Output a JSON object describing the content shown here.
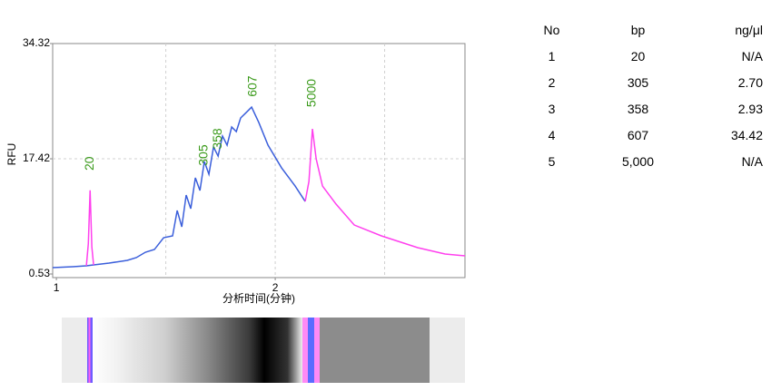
{
  "chart_data": {
    "type": "line",
    "ylabel": "RFU",
    "xlabel": "分析时间(分钟)",
    "xlim": [
      0.983,
      2.867
    ],
    "ylim": [
      0,
      34.32
    ],
    "xticks": [
      1,
      2
    ],
    "yticks": [
      0.53,
      17.42,
      34.32
    ],
    "x_grid": [
      1.5,
      2,
      2.5
    ],
    "series": [
      {
        "color": "#3b5fdb",
        "x": [
          0.983,
          1.075,
          1.137,
          1.17,
          1.241,
          1.324,
          1.365,
          1.407,
          1.448,
          1.49,
          1.531,
          1.552,
          1.573,
          1.593,
          1.614,
          1.635,
          1.656,
          1.676,
          1.697,
          1.718,
          1.739,
          1.759,
          1.78,
          1.801,
          1.822,
          1.842,
          1.863,
          1.892,
          1.925,
          1.967,
          2.029,
          2.091,
          2.137
        ],
        "values": [
          1.46,
          1.6,
          1.73,
          1.86,
          2.13,
          2.53,
          2.93,
          3.72,
          4.12,
          5.85,
          6.12,
          9.84,
          7.45,
          12.1,
          10.11,
          14.63,
          12.77,
          17.02,
          15.16,
          19.15,
          17.82,
          20.75,
          19.42,
          22.08,
          21.41,
          23.41,
          24.07,
          25.0,
          22.74,
          19.42,
          16.09,
          13.43,
          11.17
        ]
      },
      {
        "color": "#ff40ee",
        "x": [
          1.137,
          1.146,
          1.154,
          1.162,
          1.17
        ],
        "values": [
          1.73,
          5.0,
          12.8,
          4.5,
          1.86
        ]
      },
      {
        "color": "#ff40ee",
        "x": [
          2.137,
          2.154,
          2.17,
          2.187,
          2.216,
          2.278,
          2.361,
          2.485,
          2.651,
          2.776,
          2.867
        ],
        "values": [
          11.17,
          14.1,
          21.81,
          17.42,
          13.43,
          10.77,
          7.71,
          6.12,
          4.39,
          3.46,
          3.19
        ]
      }
    ],
    "annotations": [
      {
        "text": "20",
        "x": 1.154,
        "y": 15.7
      },
      {
        "text": "305",
        "x": 1.676,
        "y": 16.4
      },
      {
        "text": "358",
        "x": 1.739,
        "y": 18.8
      },
      {
        "text": "607",
        "x": 1.9,
        "y": 26.5
      },
      {
        "text": "5000",
        "x": 2.17,
        "y": 25.0
      }
    ],
    "annotation_color": "#3a9a1a"
  },
  "table": {
    "header": [
      "No",
      "bp",
      "ng/μl"
    ],
    "rows": [
      [
        "1",
        "20",
        "N/A"
      ],
      [
        "2",
        "305",
        "2.70"
      ],
      [
        "3",
        "358",
        "2.93"
      ],
      [
        "4",
        "607",
        "34.42"
      ],
      [
        "5",
        "5,000",
        "N/A"
      ]
    ]
  }
}
